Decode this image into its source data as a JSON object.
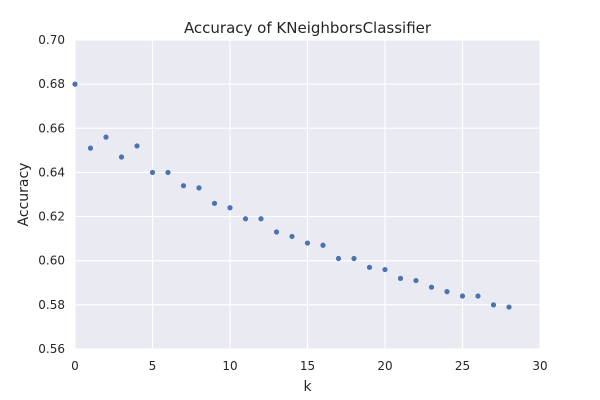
{
  "chart_data": {
    "type": "scatter",
    "title": "Accuracy of KNeighborsClassifier",
    "xlabel": "k",
    "ylabel": "Accuracy",
    "xlim": [
      0,
      30
    ],
    "ylim": [
      0.56,
      0.7
    ],
    "xticks": [
      0,
      5,
      10,
      15,
      20,
      25,
      30
    ],
    "xtick_labels": [
      "0",
      "5",
      "10",
      "15",
      "20",
      "25",
      "30"
    ],
    "yticks": [
      0.56,
      0.58,
      0.6,
      0.62,
      0.64,
      0.66,
      0.68,
      0.7
    ],
    "ytick_labels": [
      "0.56",
      "0.58",
      "0.60",
      "0.62",
      "0.64",
      "0.66",
      "0.68",
      "0.70"
    ],
    "grid": true,
    "background_color": "#eaeaf2",
    "grid_color": "#ffffff",
    "marker_color": "#4c72b0",
    "series": [
      {
        "x": [
          0,
          1,
          2,
          3,
          4,
          5,
          6,
          7,
          8,
          9,
          10,
          11,
          12,
          13,
          14,
          15,
          16,
          17,
          18,
          19,
          20,
          21,
          22,
          23,
          24,
          25,
          26,
          27,
          28
        ],
        "y": [
          0.68,
          0.651,
          0.656,
          0.647,
          0.652,
          0.64,
          0.64,
          0.634,
          0.633,
          0.626,
          0.624,
          0.619,
          0.619,
          0.613,
          0.611,
          0.608,
          0.607,
          0.601,
          0.601,
          0.597,
          0.596,
          0.592,
          0.591,
          0.588,
          0.586,
          0.584,
          0.584,
          0.58,
          0.579
        ]
      }
    ]
  }
}
